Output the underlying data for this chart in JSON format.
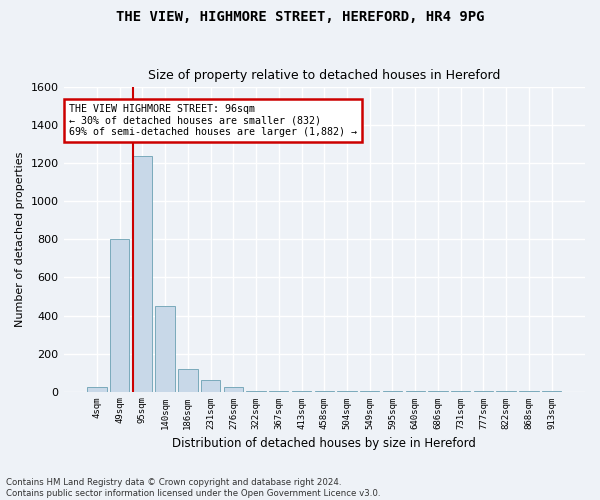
{
  "title": "THE VIEW, HIGHMORE STREET, HEREFORD, HR4 9PG",
  "subtitle": "Size of property relative to detached houses in Hereford",
  "xlabel": "Distribution of detached houses by size in Hereford",
  "ylabel": "Number of detached properties",
  "bar_categories": [
    "4sqm",
    "49sqm",
    "95sqm",
    "140sqm",
    "186sqm",
    "231sqm",
    "276sqm",
    "322sqm",
    "367sqm",
    "413sqm",
    "458sqm",
    "504sqm",
    "549sqm",
    "595sqm",
    "640sqm",
    "686sqm",
    "731sqm",
    "777sqm",
    "822sqm",
    "868sqm",
    "913sqm"
  ],
  "bar_values": [
    25,
    800,
    1240,
    450,
    120,
    60,
    25,
    5,
    5,
    5,
    5,
    5,
    5,
    5,
    5,
    5,
    5,
    5,
    5,
    5,
    5
  ],
  "bar_color": "#c8d8e8",
  "bar_edge_color": "#7aaabb",
  "annotation_text": "THE VIEW HIGHMORE STREET: 96sqm\n← 30% of detached houses are smaller (832)\n69% of semi-detached houses are larger (1,882) →",
  "annotation_box_color": "#ffffff",
  "annotation_box_edge_color": "#cc0000",
  "vline_color": "#cc0000",
  "ylim": [
    0,
    1600
  ],
  "yticks": [
    0,
    200,
    400,
    600,
    800,
    1000,
    1200,
    1400,
    1600
  ],
  "footer": "Contains HM Land Registry data © Crown copyright and database right 2024.\nContains public sector information licensed under the Open Government Licence v3.0.",
  "bg_color": "#eef2f7",
  "grid_color": "#ffffff",
  "title_fontsize": 10,
  "subtitle_fontsize": 9,
  "vline_bar_index": 2
}
